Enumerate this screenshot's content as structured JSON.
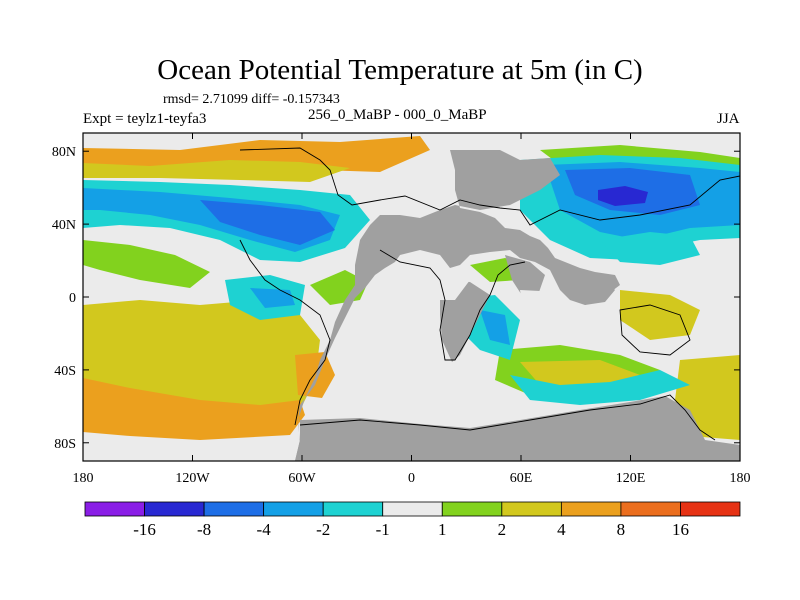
{
  "chart_data": {
    "type": "heatmap",
    "title": "Ocean Potential Temperature at 5m (in C)",
    "stats_label": "rmsd= 2.71099 diff= -0.157343",
    "left_label": "Expt = teylz1-teyfa3",
    "center_label": "256_0_MaBP - 000_0_MaBP",
    "right_label": "JJA",
    "x_ticks": [
      {
        "value": -180,
        "label": "180"
      },
      {
        "value": -120,
        "label": "120W"
      },
      {
        "value": -60,
        "label": "60W"
      },
      {
        "value": 0,
        "label": "0"
      },
      {
        "value": 60,
        "label": "60E"
      },
      {
        "value": 120,
        "label": "120E"
      },
      {
        "value": 180,
        "label": "180"
      }
    ],
    "y_ticks": [
      {
        "value": 80,
        "label": "80N"
      },
      {
        "value": 40,
        "label": "40N"
      },
      {
        "value": 0,
        "label": "0"
      },
      {
        "value": -40,
        "label": "40S"
      },
      {
        "value": -80,
        "label": "80S"
      }
    ],
    "xlim": [
      -180,
      180
    ],
    "ylim": [
      -90,
      90
    ],
    "colorbar": {
      "labels": [
        "-16",
        "-8",
        "-4",
        "-2",
        "-1",
        "1",
        "2",
        "4",
        "8",
        "16"
      ],
      "colors": [
        "#8a1ee6",
        "#2828d2",
        "#1e6ee6",
        "#14a0e6",
        "#1ed2d2",
        "#ebebeb",
        "#82d21e",
        "#d2c81e",
        "#eba01e",
        "#eb6e1e",
        "#e63214"
      ]
    },
    "land_color": "#a0a0a0"
  }
}
